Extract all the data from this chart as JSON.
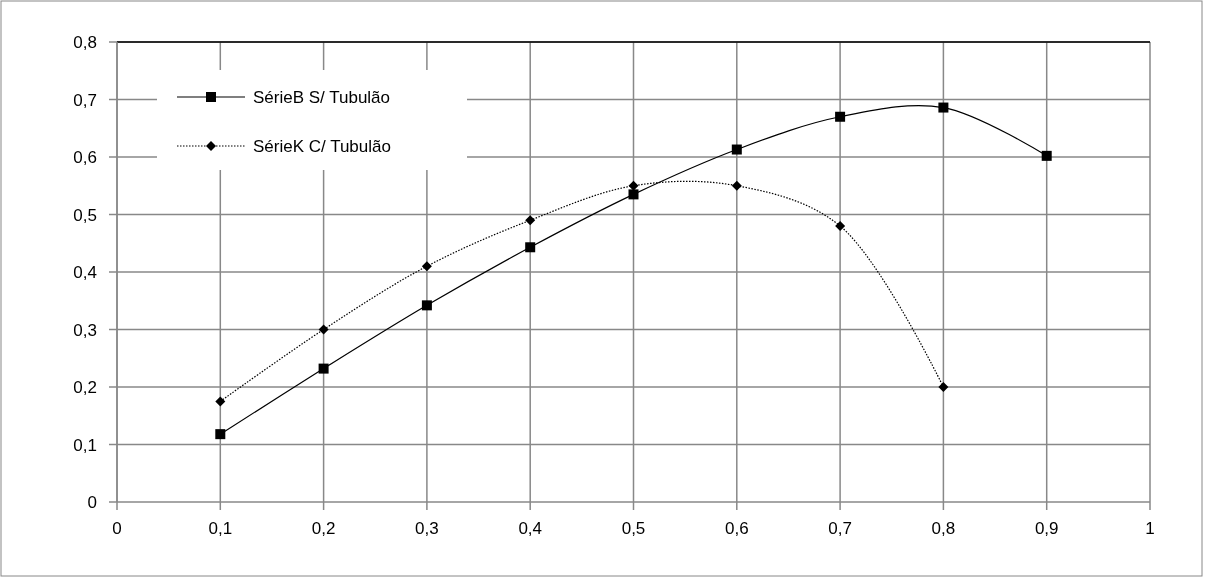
{
  "chart_data": {
    "type": "line",
    "xlim": [
      0,
      1
    ],
    "ylim": [
      0,
      0.8
    ],
    "xticks": [
      0,
      {
        "value": 0.1,
        "label": "0,1"
      },
      {
        "value": 0.2,
        "label": "0,2"
      },
      {
        "value": 0.3,
        "label": "0,3"
      },
      {
        "value": 0.4,
        "label": "0,4"
      },
      {
        "value": 0.5,
        "label": "0,5"
      },
      {
        "value": 0.6,
        "label": "0,6"
      },
      {
        "value": 0.7,
        "label": "0,7"
      },
      {
        "value": 0.8,
        "label": "0,8"
      },
      {
        "value": 0.9,
        "label": "0,9"
      },
      1
    ],
    "yticks": [
      0,
      {
        "value": 0.1,
        "label": "0,1"
      },
      {
        "value": 0.2,
        "label": "0,2"
      },
      {
        "value": 0.3,
        "label": "0,3"
      },
      {
        "value": 0.4,
        "label": "0,4"
      },
      {
        "value": 0.5,
        "label": "0,5"
      },
      {
        "value": 0.6,
        "label": "0,6"
      },
      {
        "value": 0.7,
        "label": "0,7"
      },
      {
        "value": 0.8,
        "label": "0,8"
      }
    ],
    "grid": true,
    "legend": "top left",
    "series": [
      {
        "name": "SérieB S/ Tubulão",
        "color": "#000000",
        "marker": "square",
        "line_style": "solid",
        "x": [
          0.1,
          0.2,
          0.3,
          0.4,
          0.5,
          0.6,
          0.7,
          0.8,
          0.9
        ],
        "values": [
          0.118,
          0.232,
          0.342,
          0.443,
          0.535,
          0.613,
          0.67,
          0.686,
          0.602
        ]
      },
      {
        "name": "SérieK C/ Tubulão",
        "color": "#000000",
        "marker": "diamond",
        "line_style": "dotted",
        "x": [
          0.1,
          0.2,
          0.3,
          0.4,
          0.5,
          0.6,
          0.7,
          0.8
        ],
        "values": [
          0.175,
          0.3,
          0.41,
          0.49,
          0.55,
          0.55,
          0.48,
          0.2
        ]
      }
    ]
  }
}
